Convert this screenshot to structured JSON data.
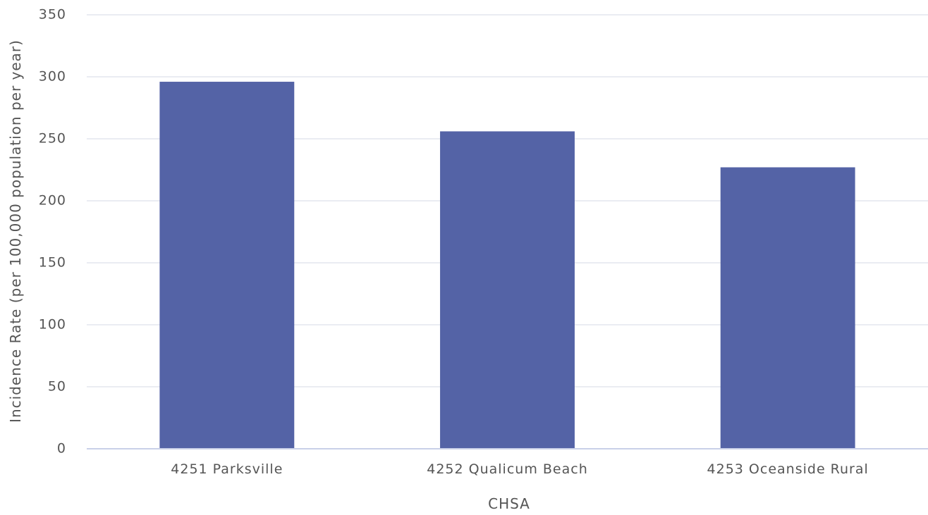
{
  "chart_data": {
    "type": "bar",
    "categories": [
      "4251 Parksville",
      "4252 Qualicum Beach",
      "4253 Oceanside Rural"
    ],
    "values": [
      296,
      256,
      227
    ],
    "xlabel": "CHSA",
    "ylabel": "Incidence Rate (per 100,000 population per year)",
    "ylim": [
      0,
      350
    ],
    "yticks": [
      0,
      50,
      100,
      150,
      200,
      250,
      300,
      350
    ],
    "grid": true,
    "legend": "none",
    "colors": {
      "bar": "#5463a6",
      "grid": "#e3e6ee",
      "axis": "#c9d0e8",
      "text": "#555555"
    }
  }
}
